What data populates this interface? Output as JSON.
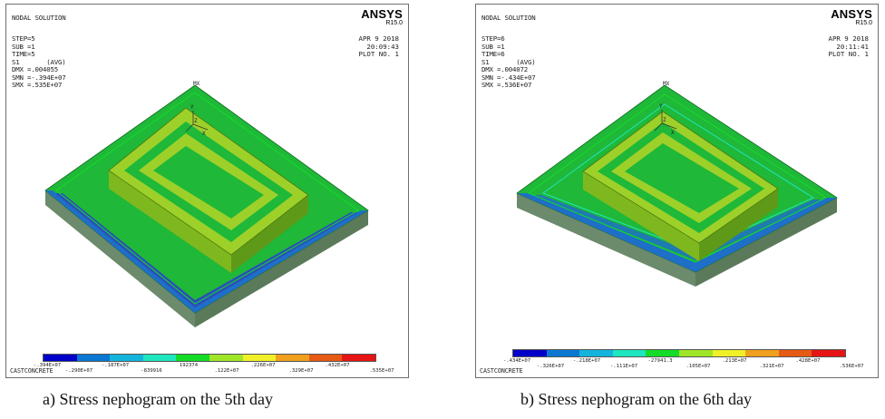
{
  "panels": [
    {
      "title": "NODAL SOLUTION",
      "step": "STEP=5",
      "sub": "SUB =1",
      "time": "TIME=5",
      "s1": "S1       (AVG)",
      "dmx": "DMX =.004055",
      "smn": "SMN =-.394E+07",
      "smx": "SMX =.535E+07",
      "brand": "ANSYS",
      "release": "R15.0",
      "date": "APR  9 2018",
      "clock": "20:09:43",
      "plot": "PLOT NO.   1",
      "mx": "MX",
      "axis_y": "Y",
      "axis_z": "Z",
      "axis_x": "X",
      "footer": "CASTCONCRETE",
      "caption": "a) Stress nephogram on the 5th day",
      "legend_labels": [
        "-.394E+07",
        "-.290E+07",
        "-.187E+07",
        "-839916",
        "192374",
        ".122E+07",
        ".226E+07",
        ".329E+07",
        ".432E+07",
        ".535E+07"
      ]
    },
    {
      "title": "NODAL SOLUTION",
      "step": "STEP=6",
      "sub": "SUB =1",
      "time": "TIME=6",
      "s1": "S1       (AVG)",
      "dmx": "DMX =.004072",
      "smn": "SMN =-.434E+07",
      "smx": "SMX =.536E+07",
      "brand": "ANSYS",
      "release": "R15.0",
      "date": "APR  9 2018",
      "clock": "20:11:41",
      "plot": "PLOT NO.   1",
      "mx": "MX",
      "axis_y": "Y",
      "axis_z": "Z",
      "axis_x": "X",
      "footer": "CASTCONCRETE",
      "caption": "b) Stress nephogram on the 6th day",
      "legend_labels": [
        "-.434E+07",
        "-.326E+07",
        "-.218E+07",
        "-.111E+07",
        "-27941.3",
        ".105E+07",
        ".213E+07",
        ".321E+07",
        ".428E+07",
        ".536E+07"
      ]
    }
  ],
  "colors": {
    "contour_scale": [
      "#0000c8",
      "#0a78d2",
      "#14b4dc",
      "#1ee6be",
      "#14dc28",
      "#a0e628",
      "#f0f028",
      "#f0a01e",
      "#e65a14",
      "#e61414"
    ],
    "slab_top": "#1fb838",
    "slab_edge_blue": "#1e6fc8",
    "block_yellow": "#9ed02a"
  }
}
